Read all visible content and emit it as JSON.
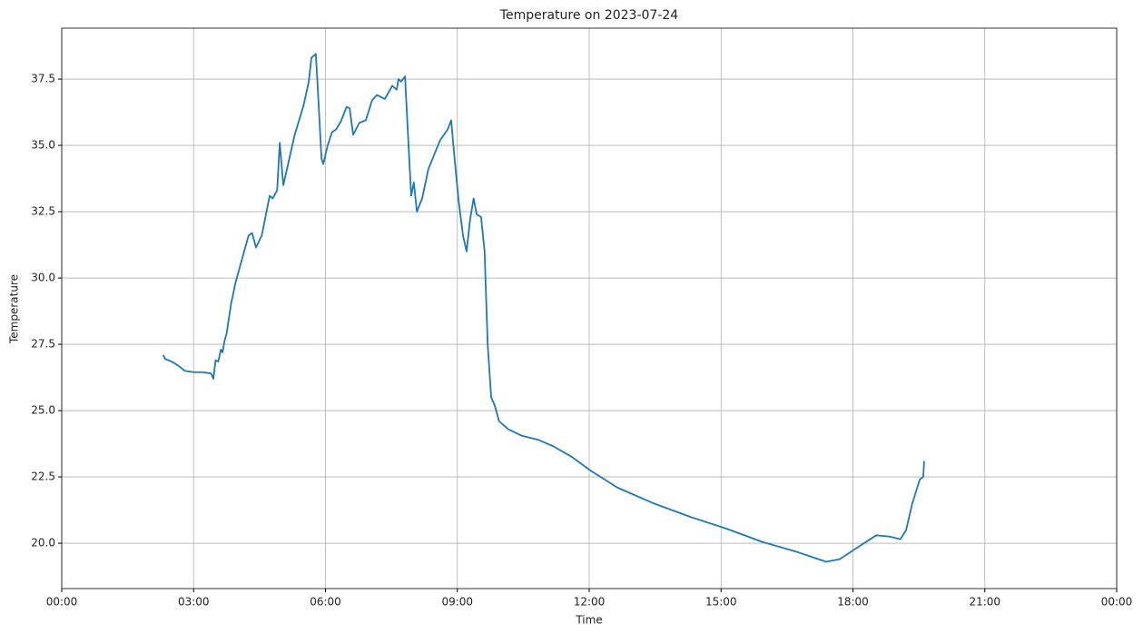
{
  "chart_data": {
    "type": "line",
    "title": "Temperature on 2023-07-24",
    "x_label": "Time",
    "y_label": "Temperature",
    "x": [
      2.31,
      2.35,
      2.5,
      2.65,
      2.8,
      3.0,
      3.2,
      3.4,
      3.45,
      3.5,
      3.56,
      3.62,
      3.66,
      3.7,
      3.75,
      3.85,
      3.95,
      4.05,
      4.15,
      4.25,
      4.33,
      4.42,
      4.55,
      4.73,
      4.8,
      4.9,
      4.96,
      5.04,
      5.15,
      5.3,
      5.41,
      5.5,
      5.62,
      5.68,
      5.78,
      5.82,
      5.91,
      5.95,
      6.05,
      6.15,
      6.24,
      6.35,
      6.48,
      6.55,
      6.63,
      6.77,
      6.92,
      7.06,
      7.17,
      7.35,
      7.52,
      7.62,
      7.66,
      7.72,
      7.81,
      7.89,
      7.95,
      8.01,
      8.08,
      8.2,
      8.34,
      8.51,
      8.61,
      8.78,
      8.86,
      8.92,
      9.03,
      9.13,
      9.21,
      9.29,
      9.37,
      9.44,
      9.54,
      9.62,
      9.69,
      9.77,
      9.85,
      9.95,
      10.16,
      10.47,
      10.84,
      11.19,
      11.61,
      12.02,
      12.64,
      13.47,
      14.29,
      15.12,
      15.94,
      16.77,
      17.39,
      17.7,
      18.11,
      18.53,
      18.84,
      19.08,
      19.21,
      19.35,
      19.52,
      19.6,
      19.62
    ],
    "series": [
      {
        "name": "Temperature",
        "color": "#1f77b4",
        "values": [
          27.1,
          26.95,
          26.85,
          26.7,
          26.5,
          26.45,
          26.45,
          26.4,
          26.2,
          26.9,
          26.85,
          27.3,
          27.2,
          27.6,
          27.9,
          29.0,
          29.8,
          30.4,
          31.0,
          31.6,
          31.7,
          31.15,
          31.6,
          33.1,
          33.0,
          33.3,
          35.1,
          33.5,
          34.3,
          35.4,
          36.0,
          36.5,
          37.4,
          38.3,
          38.45,
          37.3,
          34.5,
          34.3,
          35.0,
          35.5,
          35.6,
          35.9,
          36.45,
          36.4,
          35.4,
          35.85,
          35.95,
          36.7,
          36.9,
          36.75,
          37.25,
          37.1,
          37.5,
          37.4,
          37.6,
          35.0,
          33.1,
          33.6,
          32.5,
          33.0,
          34.1,
          34.8,
          35.2,
          35.6,
          35.95,
          34.8,
          32.9,
          31.6,
          31.0,
          32.2,
          33.0,
          32.4,
          32.3,
          31.0,
          27.5,
          25.5,
          25.2,
          24.6,
          24.3,
          24.05,
          23.9,
          23.65,
          23.25,
          22.75,
          22.1,
          21.5,
          21.0,
          20.55,
          20.05,
          19.65,
          19.3,
          19.4,
          19.85,
          20.3,
          20.25,
          20.15,
          20.5,
          21.5,
          22.4,
          22.5,
          23.1
        ]
      }
    ],
    "xlim": [
      0,
      24
    ],
    "ylim": [
      18.29,
      39.42
    ],
    "xticks": [
      {
        "value": 0,
        "label": "00:00"
      },
      {
        "value": 3,
        "label": "03:00"
      },
      {
        "value": 6,
        "label": "06:00"
      },
      {
        "value": 9,
        "label": "09:00"
      },
      {
        "value": 12,
        "label": "12:00"
      },
      {
        "value": 15,
        "label": "15:00"
      },
      {
        "value": 18,
        "label": "18:00"
      },
      {
        "value": 21,
        "label": "21:00"
      },
      {
        "value": 24,
        "label": "00:00"
      }
    ],
    "yticks": [
      {
        "value": 20,
        "label": "20.0"
      },
      {
        "value": 22.5,
        "label": "22.5"
      },
      {
        "value": 25,
        "label": "25.0"
      },
      {
        "value": 27.5,
        "label": "27.5"
      },
      {
        "value": 30,
        "label": "30.0"
      },
      {
        "value": 32.5,
        "label": "32.5"
      },
      {
        "value": 35,
        "label": "35.0"
      },
      {
        "value": 37.5,
        "label": "37.5"
      }
    ],
    "grid": true
  }
}
